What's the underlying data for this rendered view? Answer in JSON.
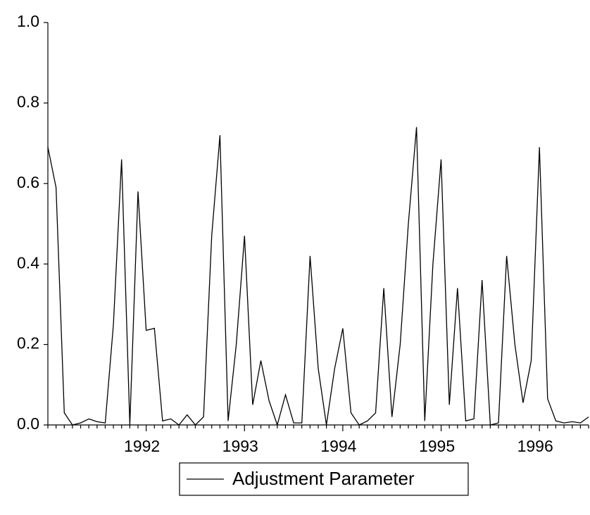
{
  "chart_data": {
    "type": "line",
    "categories": [
      null,
      null,
      null,
      null,
      null,
      null,
      null,
      null,
      null,
      null,
      null,
      null,
      "1992",
      null,
      null,
      null,
      null,
      null,
      null,
      null,
      null,
      null,
      null,
      null,
      "1993",
      null,
      null,
      null,
      null,
      null,
      null,
      null,
      null,
      null,
      null,
      null,
      "1994",
      null,
      null,
      null,
      null,
      null,
      null,
      null,
      null,
      null,
      null,
      null,
      "1995",
      null,
      null,
      null,
      null,
      null,
      null,
      null,
      null,
      null,
      null,
      null,
      "1996",
      null,
      null,
      null,
      null,
      null,
      null
    ],
    "series": [
      {
        "name": "Adjustment Parameter",
        "color": "#000000",
        "values": [
          0.69,
          0.59,
          0.03,
          0.0,
          0.005,
          0.015,
          0.008,
          0.005,
          0.25,
          0.66,
          0.0,
          0.58,
          0.235,
          0.24,
          0.01,
          0.015,
          0.0,
          0.025,
          0.0,
          0.02,
          0.47,
          0.72,
          0.01,
          0.2,
          0.47,
          0.05,
          0.16,
          0.06,
          0.0,
          0.075,
          0.005,
          0.005,
          0.42,
          0.14,
          0.0,
          0.14,
          0.24,
          0.03,
          0.0,
          0.01,
          0.03,
          0.34,
          0.02,
          0.2,
          0.5,
          0.74,
          0.01,
          0.4,
          0.66,
          0.05,
          0.34,
          0.01,
          0.015,
          0.36,
          0.0,
          0.005,
          0.42,
          0.2,
          0.055,
          0.16,
          0.69,
          0.065,
          0.01,
          0.005,
          0.008,
          0.005,
          0.02
        ]
      }
    ],
    "ylim": [
      0,
      1
    ],
    "yticks": [
      {
        "value": 0,
        "label": "0.0"
      },
      0.2,
      0.4,
      0.6,
      0.8,
      {
        "value": 1,
        "label": "1.0"
      }
    ],
    "legend": "bottom"
  }
}
